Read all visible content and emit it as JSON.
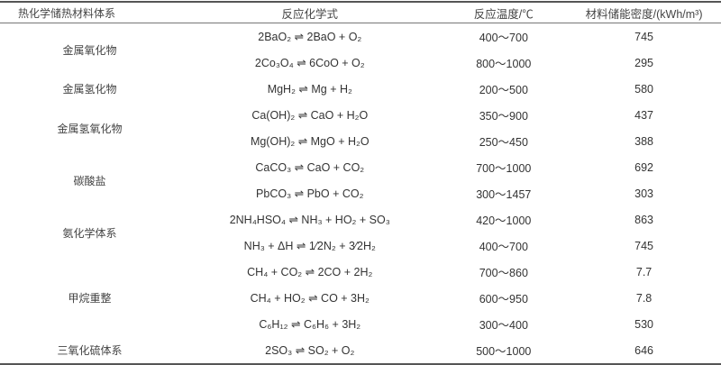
{
  "headers": [
    "热化学储热材料体系",
    "反应化学式",
    "反应温度/℃",
    "材料储能密度/(kWh/m³)"
  ],
  "groups": [
    {
      "system": "金属氧化物",
      "rows": [
        {
          "reaction": "2BaO₂ ⇌ 2BaO + O₂",
          "temperature": "400～700",
          "density": "745"
        },
        {
          "reaction": "2Co₃O₄ ⇌ 6CoO + O₂",
          "temperature": "800～1000",
          "density": "295"
        }
      ]
    },
    {
      "system": "金属氢化物",
      "rows": [
        {
          "reaction": "MgH₂ ⇌ Mg + H₂",
          "temperature": "200～500",
          "density": "580"
        }
      ]
    },
    {
      "system": "金属氢氧化物",
      "rows": [
        {
          "reaction": "Ca(OH)₂ ⇌ CaO + H₂O",
          "temperature": "350～900",
          "density": "437"
        },
        {
          "reaction": "Mg(OH)₂ ⇌ MgO + H₂O",
          "temperature": "250～450",
          "density": "388"
        }
      ]
    },
    {
      "system": "碳酸盐",
      "rows": [
        {
          "reaction": "CaCO₃ ⇌ CaO + CO₂",
          "temperature": "700～1000",
          "density": "692"
        },
        {
          "reaction": "PbCO₃ ⇌ PbO + CO₂",
          "temperature": "300～1457",
          "density": "303"
        }
      ]
    },
    {
      "system": "氨化学体系",
      "rows": [
        {
          "reaction": "2NH₄HSO₄ ⇌ NH₃ + HO₂ + SO₃",
          "temperature": "420～1000",
          "density": "863"
        },
        {
          "reaction": "NH₃ + ΔH ⇌ 1⁄2N₂ + 3⁄2H₂",
          "temperature": "400～700",
          "density": "745"
        }
      ]
    },
    {
      "system": "甲烷重整",
      "rows": [
        {
          "reaction": "CH₄ + CO₂ ⇌ 2CO + 2H₂",
          "temperature": "700～860",
          "density": "7.7"
        },
        {
          "reaction": "CH₄ + HO₂ ⇌ CO + 3H₂",
          "temperature": "600～950",
          "density": "7.8"
        },
        {
          "reaction": "C₆H₁₂ ⇌ C₆H₆ + 3H₂",
          "temperature": "300～400",
          "density": "530"
        }
      ]
    },
    {
      "system": "三氧化硫体系",
      "rows": [
        {
          "reaction": "2SO₃ ⇌ SO₂ + O₂",
          "temperature": "500～1000",
          "density": "646"
        }
      ]
    }
  ]
}
